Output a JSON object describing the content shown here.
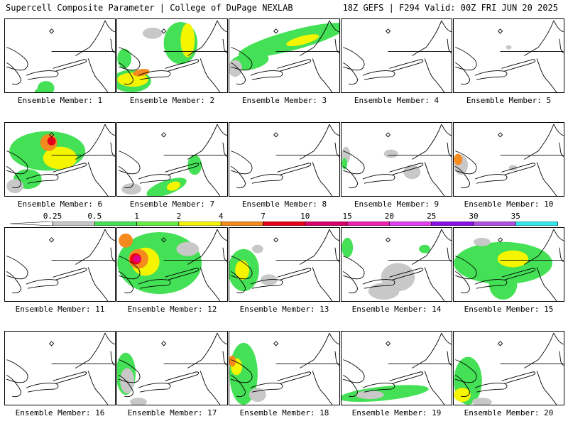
{
  "header": {
    "title": "Supercell Composite Parameter | College of DuPage NEXLAB",
    "run_info": "18Z GEFS | F294 Valid: 00Z FRI JUN 20 2025"
  },
  "colors": {
    "gray": "#c8c8c8",
    "green": "#44e055",
    "yellow": "#f5f500",
    "orange": "#f58a1e",
    "red": "#e8001a",
    "magenta": "#e0008a"
  },
  "legend": {
    "levels": [
      "0.25",
      "0.5",
      "1",
      "2",
      "4",
      "7",
      "10",
      "15",
      "20",
      "25",
      "30",
      "35"
    ],
    "colors": [
      "#c8c8c8",
      "#44e055",
      "#66ee44",
      "#f5f500",
      "#f58a1e",
      "#e8001a",
      "#d8006a",
      "#f020b0",
      "#e040f0",
      "#8a10e8",
      "#b050e0",
      "#33e8ec"
    ]
  },
  "members": [
    {
      "label": "Ensemble Member: 1"
    },
    {
      "label": "Ensemble Member: 2"
    },
    {
      "label": "Ensemble Member: 3"
    },
    {
      "label": "Ensemble Member: 4"
    },
    {
      "label": "Ensemble Member: 5"
    },
    {
      "label": "Ensemble Member: 6"
    },
    {
      "label": "Ensemble Member: 7"
    },
    {
      "label": "Ensemble Member: 8"
    },
    {
      "label": "Ensemble Member: 9"
    },
    {
      "label": "Ensemble Member: 10"
    },
    {
      "label": "Ensemble Member: 11"
    },
    {
      "label": "Ensemble Member: 12"
    },
    {
      "label": "Ensemble Member: 13"
    },
    {
      "label": "Ensemble Member: 14"
    },
    {
      "label": "Ensemble Member: 15"
    },
    {
      "label": "Ensemble Member: 16"
    },
    {
      "label": "Ensemble Member: 17"
    },
    {
      "label": "Ensemble Member: 18"
    },
    {
      "label": "Ensemble Member: 19"
    },
    {
      "label": "Ensemble Member: 20"
    }
  ]
}
